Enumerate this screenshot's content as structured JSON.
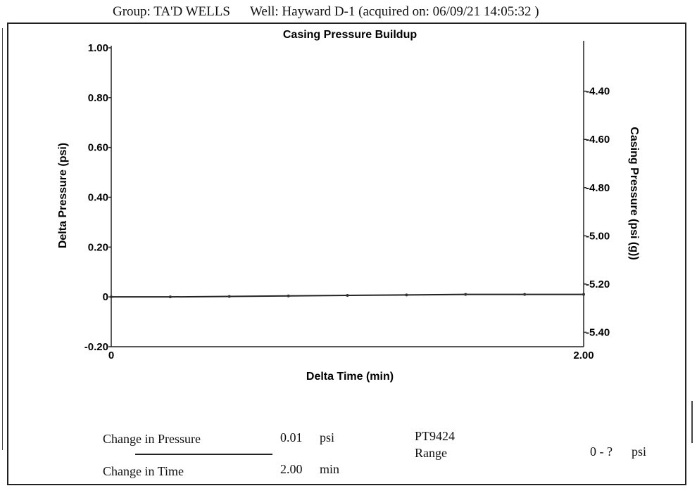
{
  "header": {
    "group": "Group: TA'D WELLS",
    "well": "Well: Hayward D-1 (acquired on: 06/09/21 14:05:32 )"
  },
  "chart_data": {
    "type": "line",
    "title": "Casing Pressure Buildup",
    "xlabel": "Delta Time (min)",
    "ylabel": "Delta Pressure (psi)",
    "y2label": "Casing Pressure (psi (g))",
    "xlim": [
      0,
      2.0
    ],
    "ylim": [
      -0.2,
      1.0
    ],
    "y2lim": [
      -5.46,
      -4.22
    ],
    "x_ticks": [
      "0",
      "2.00"
    ],
    "y_ticks": [
      "1.00",
      "0.80",
      "0.60",
      "0.40",
      "0.20",
      "0",
      "-0.20"
    ],
    "y2_ticks": [
      "-4.40",
      "-4.60",
      "-4.80",
      "-5.00",
      "-5.20",
      "-5.40"
    ],
    "grid": false,
    "series": [
      {
        "axis": "left",
        "x": [
          0,
          0.25,
          0.5,
          0.75,
          1.0,
          1.25,
          1.5,
          1.75,
          2.0
        ],
        "y": [
          0,
          0,
          0.002,
          0.004,
          0.006,
          0.008,
          0.01,
          0.01,
          0.01
        ]
      }
    ]
  },
  "footer": {
    "change_pressure_label": "Change in Pressure",
    "change_pressure_value": "0.01",
    "change_pressure_unit": "psi",
    "change_time_label": "Change in Time",
    "change_time_value": "2.00",
    "change_time_unit": "min",
    "sensor_id": "PT9424",
    "range_label": "Range",
    "range_value": "0 - ?",
    "range_unit": "psi"
  }
}
